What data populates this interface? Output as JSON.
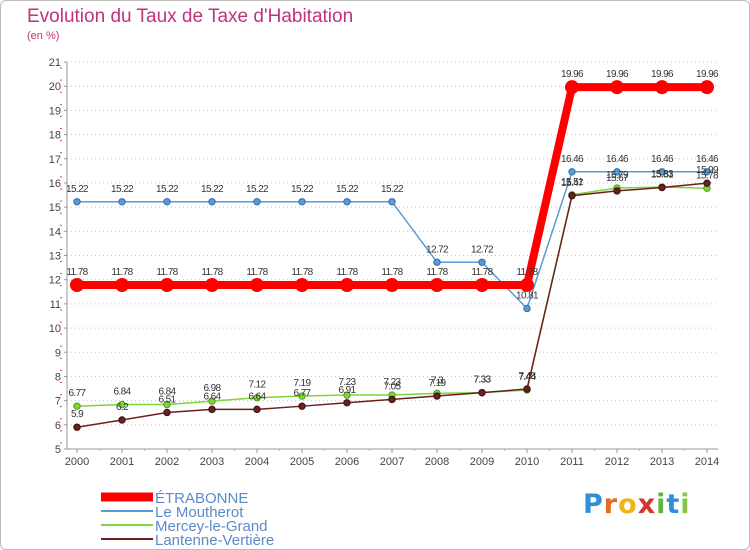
{
  "title": "Evolution du Taux de Taxe d'Habitation",
  "subtitle": "(en %)",
  "logo": {
    "letters": [
      "P",
      "r",
      "o",
      "x",
      "i",
      "t",
      "i"
    ],
    "colors": [
      "#2f8fd8",
      "#e66a1f",
      "#f2b31b",
      "#d6332e",
      "#5ab93d",
      "#2f8fd8",
      "#8bc34a"
    ]
  },
  "chart_data": {
    "type": "line",
    "title": "Evolution du Taux de Taxe d'Habitation",
    "ylabel": "(en %)",
    "xlabel": "",
    "x": [
      "2000",
      "2001",
      "2002",
      "2003",
      "2004",
      "2005",
      "2006",
      "2007",
      "2008",
      "2009",
      "2010",
      "2011",
      "2012",
      "2013",
      "2014"
    ],
    "ylim": [
      5,
      21
    ],
    "yticks": [
      "5",
      "6",
      "7",
      "8",
      "9",
      "10",
      "11",
      "12",
      "13",
      "14",
      "15",
      "16",
      "17",
      "18",
      "19",
      "20",
      "21"
    ],
    "grid": "horizontal dotted",
    "legend_position": "bottom-left",
    "series": [
      {
        "name": "ÉTRABONNE",
        "color": "#ff0000",
        "values": [
          11.78,
          11.78,
          11.78,
          11.78,
          11.78,
          11.78,
          11.78,
          11.78,
          11.78,
          11.78,
          11.78,
          19.96,
          19.96,
          19.96,
          19.96
        ],
        "labels": [
          "11.78",
          "11.78",
          "11.78",
          "11.78",
          "11.78",
          "11.78",
          "11.78",
          "11.78",
          "11.78",
          "11.78",
          "11.78",
          "19.96",
          "19.96",
          "19.96",
          "19.96"
        ]
      },
      {
        "name": "Le Moutherot",
        "color": "#5b9bd5",
        "values": [
          15.22,
          15.22,
          15.22,
          15.22,
          15.22,
          15.22,
          15.22,
          15.22,
          12.72,
          12.72,
          10.81,
          16.46,
          16.46,
          16.46,
          16.46
        ],
        "labels": [
          "15.22",
          "15.22",
          "15.22",
          "15.22",
          "15.22",
          "15.22",
          "15.22",
          "15.22",
          "12.72",
          "12.72",
          "10.81",
          "16.46",
          "16.46",
          "16.46",
          "16.46"
        ]
      },
      {
        "name": "Mercey-le-Grand",
        "color": "#7ed63b",
        "values": [
          6.77,
          6.84,
          6.84,
          6.98,
          7.12,
          7.19,
          7.23,
          7.23,
          7.3,
          7.33,
          7.44,
          15.51,
          15.79,
          15.83,
          15.78
        ],
        "labels": [
          "6.77",
          "6.84",
          "6.84",
          "6.98",
          "7.12",
          "7.19",
          "7.23",
          "7.23",
          "7.3",
          "7.33",
          "7.44",
          "15.51",
          "15.79",
          "15.83",
          "15.78"
        ]
      },
      {
        "name": "Lantenne-Vertière",
        "color": "#6b1f1f",
        "values": [
          5.9,
          6.2,
          6.51,
          6.64,
          6.64,
          6.77,
          6.91,
          7.05,
          7.19,
          7.33,
          7.48,
          15.47,
          15.67,
          15.81,
          15.99
        ],
        "labels": [
          "5.9",
          "6.2",
          "6.51",
          "6.64",
          "6.64",
          "6.77",
          "6.91",
          "7.05",
          "7.19",
          "7.33",
          "7.48",
          "15.47",
          "15.67",
          "15.81",
          "15.99"
        ]
      }
    ]
  }
}
